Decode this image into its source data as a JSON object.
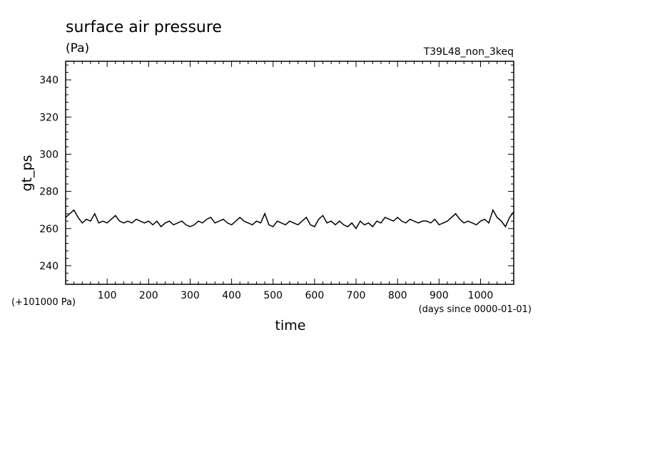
{
  "title": "surface air pressure",
  "units": "(Pa)",
  "run_label": "T39L48_non_3keq",
  "offset_label": "(+101000 Pa)",
  "time_unit_label": "(days since 0000-01-01)",
  "chart_data": {
    "type": "line",
    "title": "surface air pressure",
    "xlabel": "time",
    "ylabel": "gt_ps",
    "xlim": [
      0,
      1080
    ],
    "ylim": [
      230,
      350
    ],
    "xticks": [
      100,
      200,
      300,
      400,
      500,
      600,
      700,
      800,
      900,
      1000
    ],
    "yticks": [
      240,
      260,
      280,
      300,
      320,
      340
    ],
    "series": [
      {
        "x": [
          0,
          10,
          20,
          30,
          40,
          50,
          60,
          70,
          80,
          90,
          100,
          110,
          120,
          130,
          140,
          150,
          160,
          170,
          180,
          190,
          200,
          210,
          220,
          230,
          240,
          250,
          260,
          270,
          280,
          290,
          300,
          310,
          320,
          330,
          340,
          350,
          360,
          370,
          380,
          390,
          400,
          410,
          420,
          430,
          440,
          450,
          460,
          470,
          480,
          490,
          500,
          510,
          520,
          530,
          540,
          550,
          560,
          570,
          580,
          590,
          600,
          610,
          620,
          630,
          640,
          650,
          660,
          670,
          680,
          690,
          700,
          710,
          720,
          730,
          740,
          750,
          760,
          770,
          780,
          790,
          800,
          810,
          820,
          830,
          840,
          850,
          860,
          870,
          880,
          890,
          900,
          910,
          920,
          930,
          940,
          950,
          960,
          970,
          980,
          990,
          1000,
          1010,
          1020,
          1030,
          1040,
          1050,
          1060,
          1070,
          1080
        ],
        "y": [
          266,
          268,
          270,
          266,
          263,
          265,
          264,
          268,
          263,
          264,
          263,
          265,
          267,
          264,
          263,
          264,
          263,
          265,
          264,
          263,
          264,
          262,
          264,
          261,
          263,
          264,
          262,
          263,
          264,
          262,
          261,
          262,
          264,
          263,
          265,
          266,
          263,
          264,
          265,
          263,
          262,
          264,
          266,
          264,
          263,
          262,
          264,
          263,
          268,
          262,
          261,
          264,
          263,
          262,
          264,
          263,
          262,
          264,
          266,
          262,
          261,
          265,
          267,
          263,
          264,
          262,
          264,
          262,
          261,
          263,
          260,
          264,
          262,
          263,
          261,
          264,
          263,
          266,
          265,
          264,
          266,
          264,
          263,
          265,
          264,
          263,
          264,
          264,
          263,
          265,
          262,
          263,
          264,
          266,
          268,
          265,
          263,
          264,
          263,
          262,
          264,
          265,
          263,
          270,
          266,
          264,
          261,
          266,
          269
        ]
      }
    ]
  }
}
